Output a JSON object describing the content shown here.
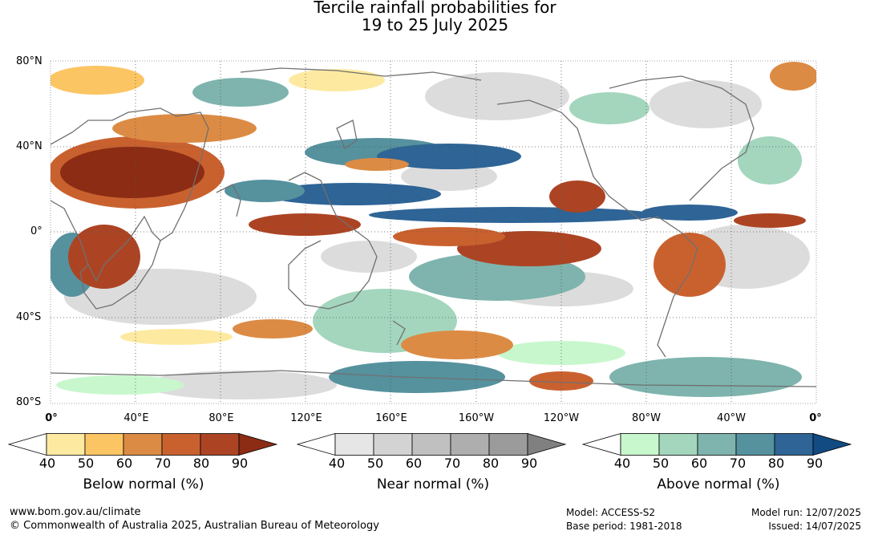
{
  "title": {
    "line1": "Tercile rainfall probabilities for",
    "line2": "19 to 25 July 2025"
  },
  "map": {
    "lat_labels": [
      "80°N",
      "40°N",
      "0°",
      "40°S",
      "80°S"
    ],
    "lon_labels": [
      "0°",
      "40°E",
      "80°E",
      "120°E",
      "160°E",
      "160°W",
      "120°W",
      "80°W",
      "40°W",
      "0°"
    ]
  },
  "colorbars": [
    {
      "title": "Below normal (%)",
      "ticks": [
        "40",
        "50",
        "60",
        "70",
        "80",
        "90"
      ],
      "colors": [
        "#ffffff",
        "#fdeaa0",
        "#fcc563",
        "#dc8b44",
        "#c9612f",
        "#ac4424",
        "#8c2c14"
      ]
    },
    {
      "title": "Near normal (%)",
      "ticks": [
        "40",
        "50",
        "60",
        "70",
        "80",
        "90"
      ],
      "colors": [
        "#ffffff",
        "#e6e6e6",
        "#d3d3d3",
        "#c0c0c0",
        "#aeaeae",
        "#9b9b9b",
        "#808080"
      ]
    },
    {
      "title": "Above normal (%)",
      "ticks": [
        "40",
        "50",
        "60",
        "70",
        "80",
        "90"
      ],
      "colors": [
        "#ffffff",
        "#c8f7cd",
        "#a3d6bd",
        "#7eb4ad",
        "#56919e",
        "#2e6496",
        "#124a82"
      ]
    }
  ],
  "footer": {
    "website": "www.bom.gov.au/climate",
    "copyright": "© Commonwealth of Australia 2025, Australian Bureau of Meteorology",
    "model": "Model: ACCESS-S2",
    "base_period": "Base period: 1981-2018",
    "model_run": "Model run: 12/07/2025",
    "issued": "Issued: 14/07/2025"
  }
}
